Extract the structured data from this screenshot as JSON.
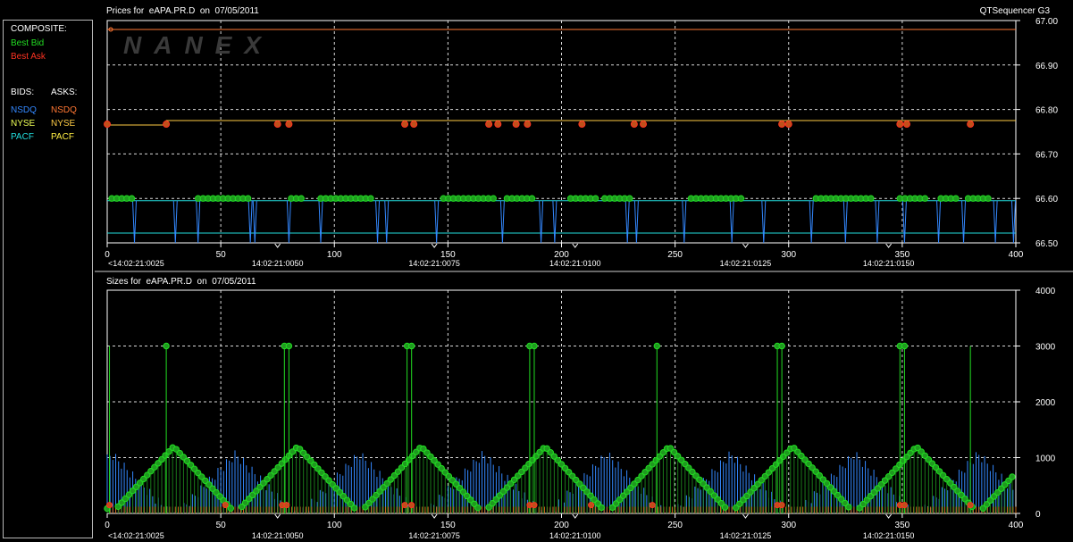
{
  "legend": {
    "composite_label": "COMPOSITE:",
    "best_bid": "Best Bid",
    "best_ask": "Best Ask",
    "bids_label": "BIDS:",
    "asks_label": "ASKS:",
    "bid_exchanges": [
      "NSDQ",
      "NYSE",
      "PACF"
    ],
    "ask_exchanges": [
      "NSDQ",
      "NYSE",
      "PACF"
    ]
  },
  "watermark": "NANEX",
  "colors": {
    "best_bid": "#22dd22",
    "best_ask": "#ff3322",
    "bid_nsdq": "#3388ff",
    "bid_nyse": "#eeff55",
    "bid_pacf": "#22dddd",
    "ask_nsdq": "#ff7733",
    "ask_nyse": "#ffcc44",
    "ask_pacf": "#ffee44",
    "grid": "#d8d8d8",
    "axis": "#ffffff"
  },
  "chart_data": [
    {
      "type": "line",
      "title": "Prices for  eAPA.PR.D  on  07/05/2011",
      "title_right": "QTSequencer G3",
      "xlim": [
        0,
        400
      ],
      "ylim": [
        66.5,
        67.0
      ],
      "xticks": [
        0,
        50,
        100,
        150,
        200,
        250,
        300,
        350,
        400
      ],
      "yticks": [
        "66.50",
        "66.60",
        "66.70",
        "66.80",
        "66.90",
        "67.00"
      ],
      "time_labels": [
        {
          "x": 0,
          "label": "<14:02:21:0025"
        },
        {
          "x": 75,
          "label": "14:02:21:0050"
        },
        {
          "x": 144,
          "label": "14:02:21:0075"
        },
        {
          "x": 206,
          "label": "14:02:21:0100"
        },
        {
          "x": 281,
          "label": "14:02:21:0125"
        },
        {
          "x": 344,
          "label": "14:02:21:0150"
        }
      ],
      "grid": true,
      "series": [
        {
          "name": "NYSE ask",
          "color_key": "ask_nsdq",
          "values": [
            [
              0,
              66.98
            ],
            [
              400,
              66.98
            ]
          ]
        },
        {
          "name": "Best Ask",
          "color_key": "ask_nyse",
          "values": [
            [
              0,
              66.765
            ],
            [
              25,
              66.765
            ],
            [
              26,
              66.775
            ],
            [
              400,
              66.775
            ]
          ]
        },
        {
          "name": "PACF bid",
          "color_key": "bid_pacf",
          "values": [
            [
              0,
              66.595
            ],
            [
              400,
              66.595
            ]
          ]
        },
        {
          "name": "Best Bid",
          "color_key": "best_bid",
          "values": [
            [
              0,
              66.595
            ],
            [
              400,
              66.595
            ]
          ]
        }
      ],
      "ask_markers_x": [
        0,
        26,
        75,
        80,
        131,
        135,
        168,
        172,
        180,
        185,
        209,
        232,
        236,
        297,
        300,
        349,
        352,
        380
      ],
      "bid_segments": [
        [
          2,
          12
        ],
        [
          40,
          63
        ],
        [
          81,
          87
        ],
        [
          94,
          117
        ],
        [
          148,
          170
        ],
        [
          176,
          189
        ],
        [
          204,
          215
        ],
        [
          219,
          231
        ],
        [
          257,
          281
        ],
        [
          312,
          337
        ],
        [
          349,
          361
        ],
        [
          367,
          374
        ],
        [
          379,
          389
        ]
      ],
      "bid_dips_x": [
        12,
        30,
        40,
        63,
        65,
        80,
        94,
        119,
        123,
        145,
        174,
        191,
        197,
        229,
        233,
        254,
        275,
        289,
        310,
        325,
        339,
        351,
        366,
        377,
        391,
        399
      ]
    },
    {
      "type": "bar",
      "title": "Sizes for  eAPA.PR.D  on  07/05/2011",
      "xlim": [
        0,
        400
      ],
      "ylim": [
        0,
        4000
      ],
      "xticks": [
        0,
        50,
        100,
        150,
        200,
        250,
        300,
        350,
        400
      ],
      "yticks": [
        "0",
        "1000",
        "2000",
        "3000",
        "4000"
      ],
      "time_labels": [
        {
          "x": 0,
          "label": "<14:02:21:0025"
        },
        {
          "x": 75,
          "label": "14:02:21:0050"
        },
        {
          "x": 144,
          "label": "14:02:21:0075"
        },
        {
          "x": 206,
          "label": "14:02:21:0100"
        },
        {
          "x": 281,
          "label": "14:02:21:0125"
        },
        {
          "x": 344,
          "label": "14:02:21:0150"
        }
      ],
      "grid": true,
      "triangle_cycle": 54.5,
      "triangle_peak": 1200,
      "spikes": [
        {
          "x": 1,
          "value": 3000,
          "marker": false
        },
        {
          "x": 26,
          "value": 3000,
          "marker": true
        },
        {
          "x": 78,
          "value": 3000,
          "marker": true
        },
        {
          "x": 80,
          "value": 3000,
          "marker": true
        },
        {
          "x": 132,
          "value": 3000,
          "marker": true
        },
        {
          "x": 134,
          "value": 3000,
          "marker": true
        },
        {
          "x": 186,
          "value": 3000,
          "marker": true
        },
        {
          "x": 188,
          "value": 3000,
          "marker": true
        },
        {
          "x": 242,
          "value": 3000,
          "marker": true
        },
        {
          "x": 295,
          "value": 3000,
          "marker": true
        },
        {
          "x": 297,
          "value": 3000,
          "marker": true
        },
        {
          "x": 349,
          "value": 3000,
          "marker": true
        },
        {
          "x": 351,
          "value": 3000,
          "marker": true
        },
        {
          "x": 380,
          "value": 3000,
          "marker": false
        }
      ]
    }
  ]
}
